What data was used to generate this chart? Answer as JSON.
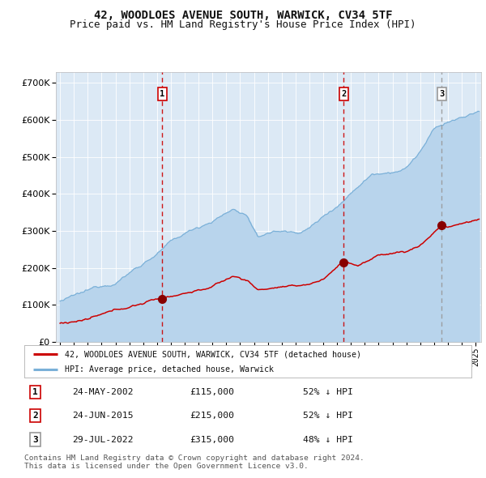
{
  "title": "42, WOODLOES AVENUE SOUTH, WARWICK, CV34 5TF",
  "subtitle": "Price paid vs. HM Land Registry's House Price Index (HPI)",
  "title_fontsize": 10,
  "subtitle_fontsize": 9,
  "bg_color": "#dce9f5",
  "fig_bg_color": "#ffffff",
  "hpi_color": "#7ab0d8",
  "hpi_fill_color": "#b8d4ec",
  "price_color": "#cc0000",
  "transaction_dot_color": "#880000",
  "vline_color_12": "#cc0000",
  "vline_color_3": "#999999",
  "transactions": [
    {
      "date_num": 2002.38,
      "price": 115000,
      "label": "1"
    },
    {
      "date_num": 2015.48,
      "price": 215000,
      "label": "2"
    },
    {
      "date_num": 2022.56,
      "price": 315000,
      "label": "3"
    }
  ],
  "legend_entries": [
    "42, WOODLOES AVENUE SOUTH, WARWICK, CV34 5TF (detached house)",
    "HPI: Average price, detached house, Warwick"
  ],
  "table_entries": [
    {
      "num": "1",
      "date": "24-MAY-2002",
      "price": "£115,000",
      "note": "52% ↓ HPI"
    },
    {
      "num": "2",
      "date": "24-JUN-2015",
      "price": "£215,000",
      "note": "52% ↓ HPI"
    },
    {
      "num": "3",
      "date": "29-JUL-2022",
      "price": "£315,000",
      "note": "48% ↓ HPI"
    }
  ],
  "footnote": "Contains HM Land Registry data © Crown copyright and database right 2024.\nThis data is licensed under the Open Government Licence v3.0.",
  "ylim": [
    0,
    730000
  ],
  "yticks": [
    0,
    100000,
    200000,
    300000,
    400000,
    500000,
    600000,
    700000
  ],
  "xlim_start": 1994.7,
  "xlim_end": 2025.4
}
